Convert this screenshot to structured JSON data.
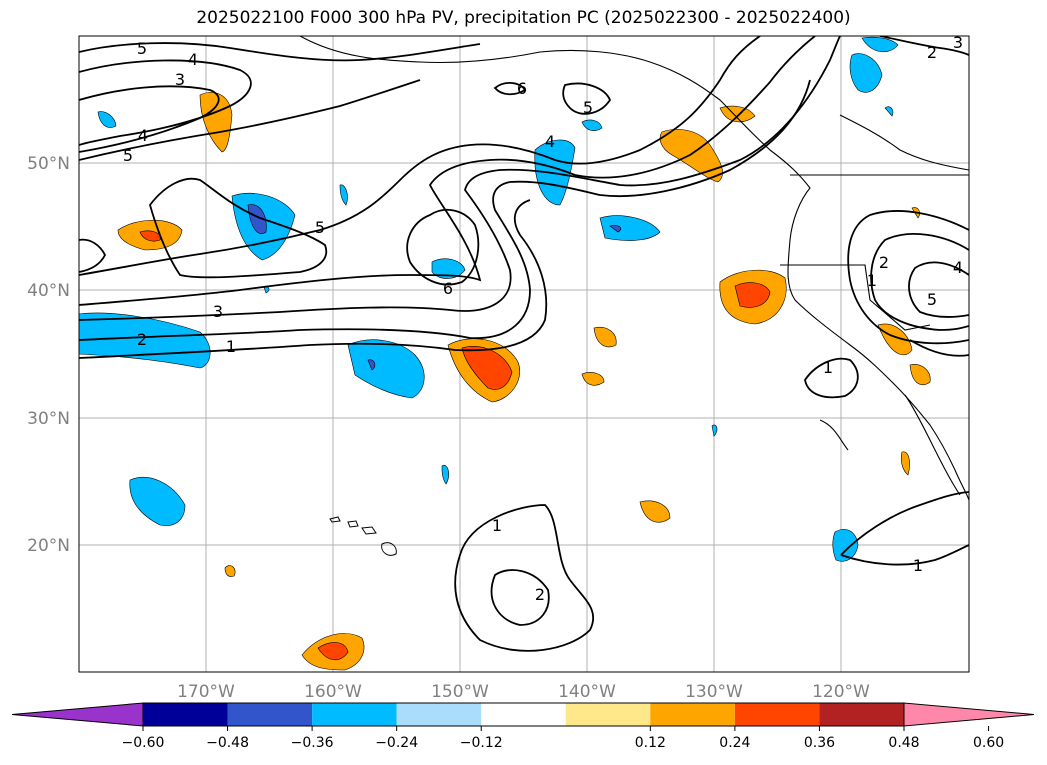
{
  "title": "2025022100 F000 300 hPa PV, precipitation PC (2025022300 - 2025022400)",
  "lat_labels": [
    "50°N",
    "40°N",
    "30°N",
    "20°N"
  ],
  "lon_labels": [
    "170°W",
    "160°W",
    "150°W",
    "140°W",
    "130°W",
    "120°W"
  ],
  "contour_labels": [
    "5",
    "4",
    "3",
    "4",
    "5",
    "6",
    "5",
    "4",
    "5",
    "3",
    "2",
    "1",
    "6",
    "1",
    "2",
    "1",
    "2",
    "1",
    "4",
    "5",
    "2",
    "3",
    "1"
  ],
  "colorbar": {
    "colors": [
      "#9933cc",
      "#000099",
      "#3355cc",
      "#00bbff",
      "#aaddfb",
      "#ffffff",
      "#ffe88a",
      "#ffa500",
      "#ff4500",
      "#b22222",
      "#ff88aa"
    ],
    "tick_labels": [
      "−0.60",
      "−0.48",
      "−0.36",
      "−0.24",
      "−0.12",
      "0.12",
      "0.24",
      "0.36",
      "0.48",
      "0.60"
    ]
  }
}
